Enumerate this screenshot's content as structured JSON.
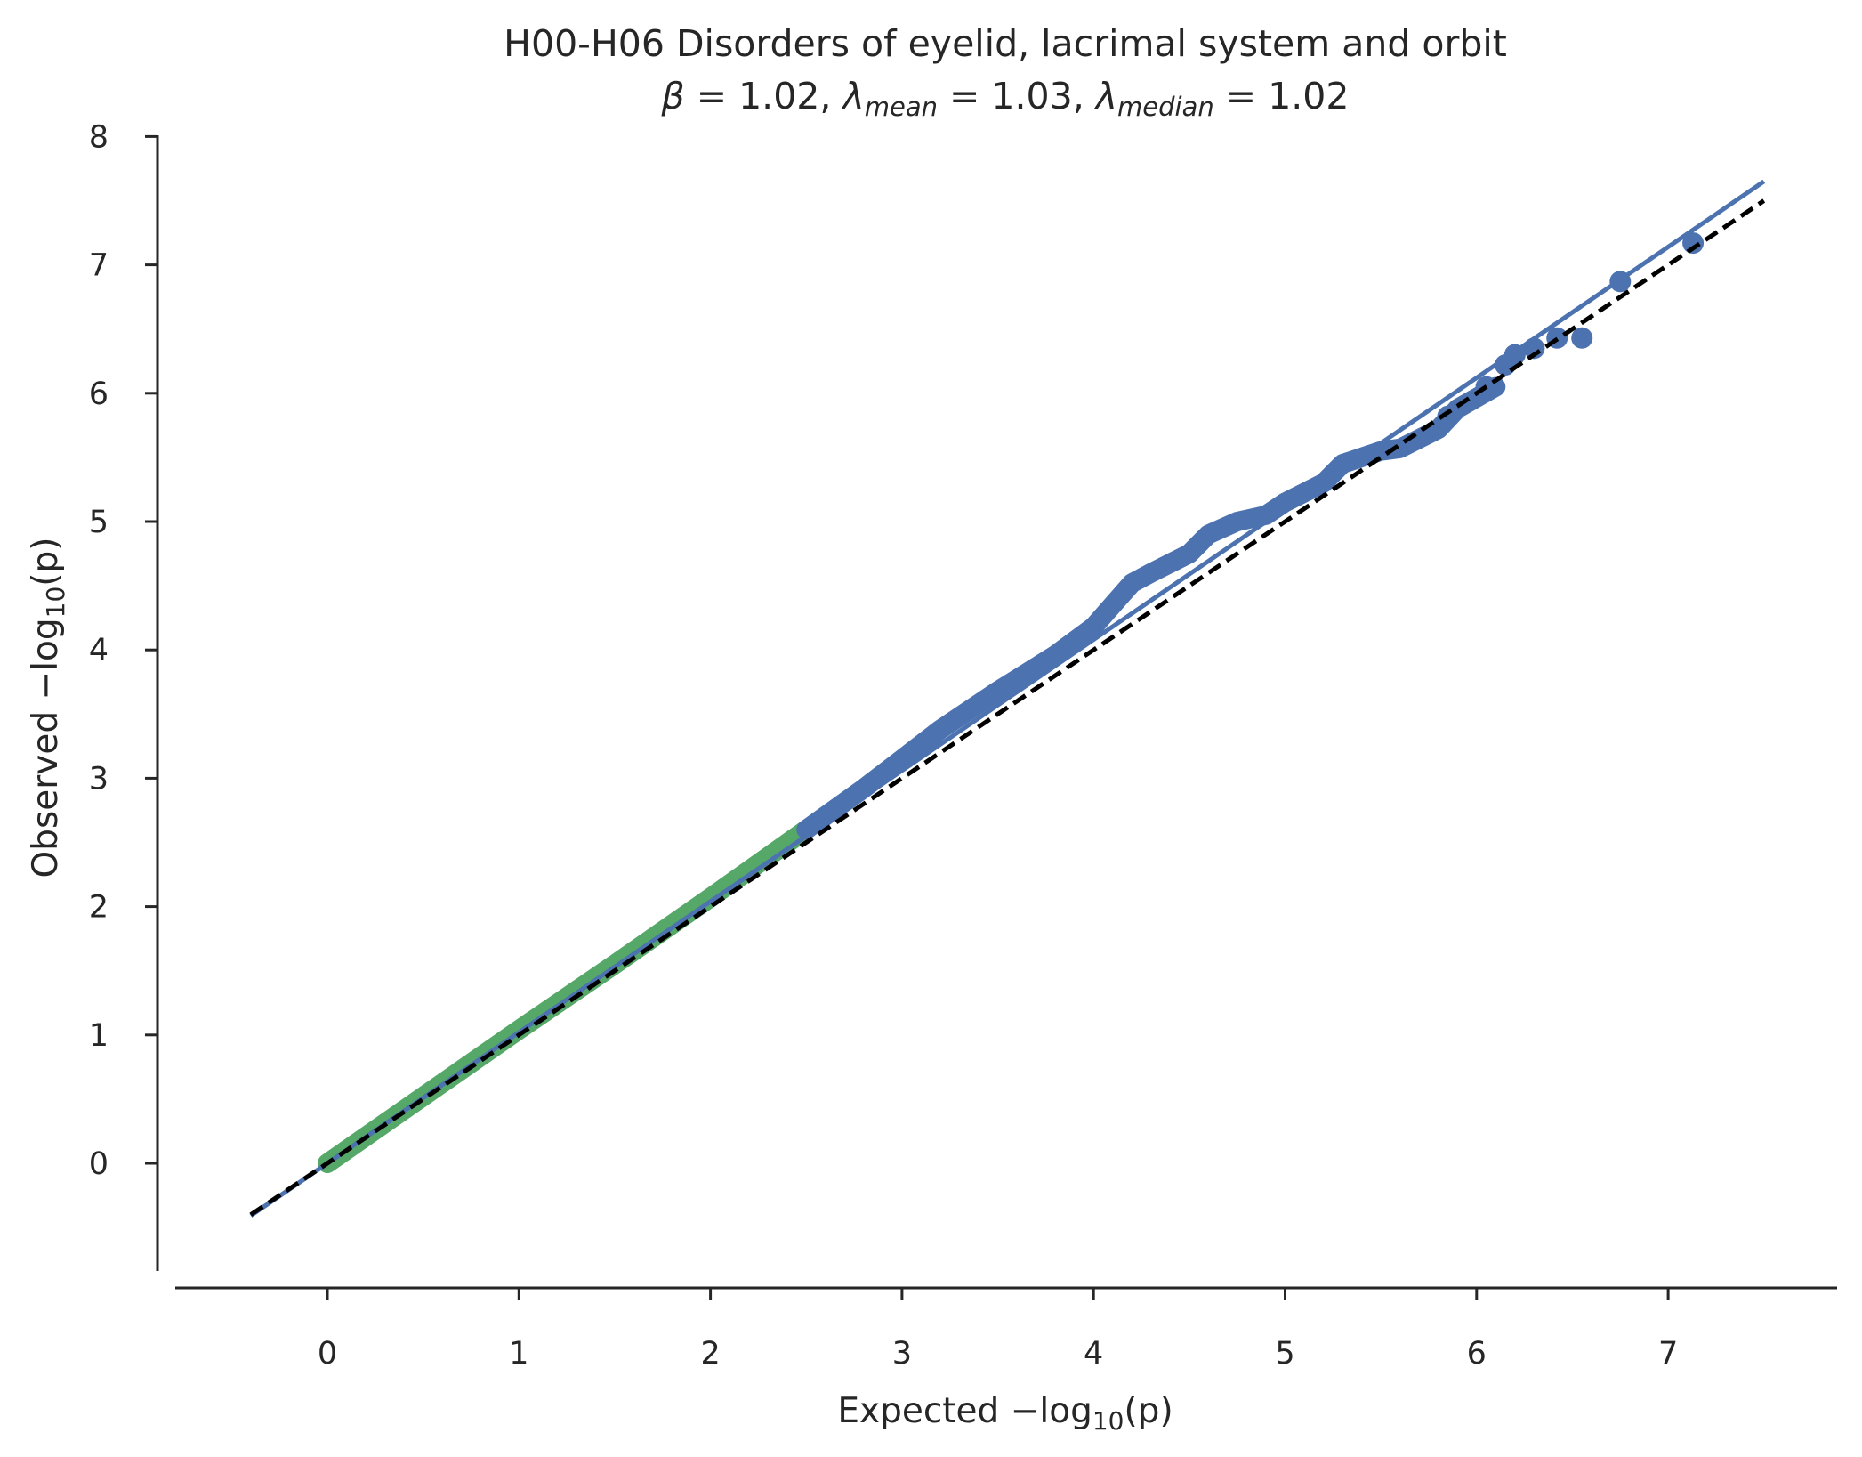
{
  "chart_data": {
    "type": "scatter",
    "title": "H00-H06 Disorders of eyelid, lacrimal system and orbit",
    "subtitle": {
      "beta_symbol": "β",
      "beta_value": "1.02",
      "lambda_symbol": "λ",
      "mean_sub": "mean",
      "mean_value": "1.03",
      "median_sub": "median",
      "median_value": "1.02"
    },
    "xlabel": {
      "prefix": "Expected −log",
      "sub": "10",
      "suffix": "(p)"
    },
    "ylabel": {
      "prefix": "Observed −log",
      "sub": "10",
      "suffix": "(p)"
    },
    "xlim": [
      -0.8,
      7.9
    ],
    "ylim": [
      -0.9,
      8.1
    ],
    "x_ticks": [
      "0",
      "1",
      "2",
      "3",
      "4",
      "5",
      "6",
      "7"
    ],
    "y_ticks": [
      "0",
      "1",
      "2",
      "3",
      "4",
      "5",
      "6",
      "7",
      "8"
    ],
    "grid": false,
    "series": [
      {
        "color": "#55a868",
        "style": "thick-band",
        "points": [
          [
            0,
            0
          ],
          [
            0.5,
            0.52
          ],
          [
            1.0,
            1.04
          ],
          [
            1.5,
            1.55
          ],
          [
            2.0,
            2.07
          ],
          [
            2.5,
            2.6
          ]
        ]
      },
      {
        "color": "#4c72b0",
        "style": "thick-band",
        "points": [
          [
            2.5,
            2.6
          ],
          [
            2.8,
            2.92
          ],
          [
            3.0,
            3.15
          ],
          [
            3.2,
            3.38
          ],
          [
            3.5,
            3.68
          ],
          [
            3.8,
            3.96
          ],
          [
            4.0,
            4.18
          ],
          [
            4.1,
            4.35
          ],
          [
            4.2,
            4.52
          ],
          [
            4.3,
            4.6
          ],
          [
            4.5,
            4.75
          ],
          [
            4.6,
            4.9
          ],
          [
            4.75,
            5.0
          ],
          [
            4.9,
            5.05
          ],
          [
            5.0,
            5.15
          ],
          [
            5.2,
            5.3
          ],
          [
            5.3,
            5.45
          ],
          [
            5.5,
            5.55
          ],
          [
            5.6,
            5.57
          ],
          [
            5.8,
            5.72
          ],
          [
            5.9,
            5.88
          ],
          [
            6.1,
            6.05
          ]
        ]
      },
      {
        "color": "#4c72b0",
        "style": "dots",
        "points": [
          [
            5.85,
            5.82
          ],
          [
            6.05,
            6.05
          ],
          [
            6.15,
            6.22
          ],
          [
            6.2,
            6.3
          ],
          [
            6.3,
            6.35
          ],
          [
            6.42,
            6.43
          ],
          [
            6.55,
            6.43
          ],
          [
            6.75,
            6.87
          ],
          [
            7.13,
            7.17
          ]
        ]
      }
    ],
    "fit_line": {
      "color": "#4c72b0",
      "slope": 1.02,
      "x_range": [
        -0.4,
        7.5
      ]
    },
    "reference_line": {
      "color": "#000000",
      "style": "dashed",
      "slope": 1.0,
      "x_range": [
        -0.4,
        7.5
      ]
    }
  }
}
